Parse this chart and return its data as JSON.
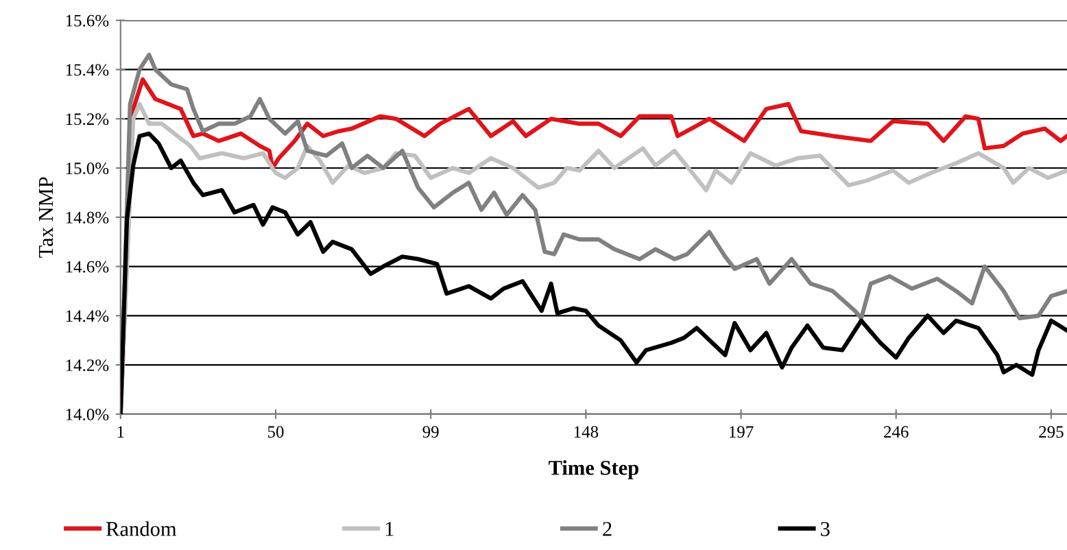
{
  "chart_data": {
    "type": "line",
    "xlabel": "Time Step",
    "ylabel": "Tax NMP",
    "xlim": [
      1,
      300
    ],
    "xticks": [
      1,
      50,
      99,
      148,
      197,
      246,
      295
    ],
    "ylim": [
      14.0,
      15.6
    ],
    "yticks": [
      {
        "value": 14.0,
        "label": "14.0%"
      },
      {
        "value": 14.2,
        "label": "14.2%"
      },
      {
        "value": 14.4,
        "label": "14.4%"
      },
      {
        "value": 14.6,
        "label": "14.6%"
      },
      {
        "value": 14.8,
        "label": "14.8%"
      },
      {
        "value": 15.0,
        "label": "15.0%"
      },
      {
        "value": 15.2,
        "label": "15.2%"
      },
      {
        "value": 15.4,
        "label": "15.4%"
      },
      {
        "value": 15.6,
        "label": "15.6%"
      }
    ],
    "grid": "y",
    "legend": "bottom",
    "marker": "none",
    "line_style": "solid",
    "series": [
      {
        "name": "Random",
        "color": "#e0141a",
        "x": [
          1,
          5,
          8,
          12,
          16,
          20,
          24,
          27,
          32,
          39,
          45,
          48,
          49,
          51,
          56,
          60,
          65,
          70,
          74,
          83,
          88,
          97,
          102,
          111,
          118,
          125,
          129,
          137,
          146,
          152,
          159,
          165,
          175,
          177,
          187,
          198,
          205,
          212,
          216,
          226,
          238,
          245,
          256,
          261,
          268,
          272,
          274,
          280,
          286,
          293,
          298,
          300
        ],
        "values": [
          14.0,
          15.24,
          15.36,
          15.28,
          15.26,
          15.24,
          15.13,
          15.14,
          15.11,
          15.14,
          15.09,
          15.07,
          15.0,
          15.04,
          15.11,
          15.18,
          15.13,
          15.15,
          15.16,
          15.21,
          15.2,
          15.13,
          15.18,
          15.24,
          15.13,
          15.19,
          15.13,
          15.2,
          15.18,
          15.18,
          15.13,
          15.21,
          15.21,
          15.13,
          15.2,
          15.11,
          15.24,
          15.26,
          15.15,
          15.13,
          15.11,
          15.19,
          15.18,
          15.11,
          15.21,
          15.2,
          15.08,
          15.09,
          15.14,
          15.16,
          15.11,
          15.13
        ]
      },
      {
        "name": "1",
        "color": "#c0c0c0",
        "x": [
          1,
          5,
          7,
          10,
          14,
          23,
          26,
          33,
          40,
          46,
          50,
          53,
          57,
          60,
          64,
          68,
          73,
          78,
          84,
          88,
          94,
          99,
          106,
          111,
          118,
          125,
          133,
          138,
          142,
          146,
          152,
          157,
          166,
          170,
          176,
          181,
          186,
          189,
          194,
          200,
          208,
          215,
          222,
          231,
          237,
          245,
          250,
          257,
          265,
          272,
          280,
          283,
          288,
          294,
          300
        ],
        "values": [
          14.0,
          15.2,
          15.26,
          15.18,
          15.18,
          15.09,
          15.04,
          15.06,
          15.04,
          15.06,
          14.98,
          14.96,
          15.0,
          15.09,
          15.03,
          14.94,
          15.01,
          14.98,
          15.0,
          15.06,
          15.05,
          14.96,
          15.0,
          14.98,
          15.04,
          15.0,
          14.92,
          14.94,
          15.0,
          14.99,
          15.07,
          15.0,
          15.08,
          15.01,
          15.07,
          14.99,
          14.91,
          14.99,
          14.94,
          15.06,
          15.01,
          15.04,
          15.05,
          14.93,
          14.95,
          14.99,
          14.94,
          14.98,
          15.02,
          15.06,
          15.0,
          14.94,
          15.0,
          14.96,
          14.99
        ]
      },
      {
        "name": "2",
        "color": "#808080",
        "x": [
          1,
          4,
          7,
          10,
          12,
          17,
          22,
          24,
          27,
          32,
          37,
          42,
          45,
          48,
          53,
          57,
          60,
          66,
          71,
          74,
          79,
          84,
          90,
          95,
          100,
          106,
          111,
          115,
          119,
          123,
          128,
          132,
          135,
          138,
          141,
          146,
          152,
          157,
          165,
          170,
          176,
          180,
          187,
          192,
          195,
          202,
          206,
          213,
          219,
          226,
          233,
          235,
          238,
          244,
          251,
          259,
          265,
          270,
          274,
          280,
          285,
          291,
          295,
          300
        ],
        "values": [
          14.0,
          15.26,
          15.4,
          15.46,
          15.4,
          15.34,
          15.32,
          15.24,
          15.15,
          15.18,
          15.18,
          15.21,
          15.28,
          15.2,
          15.14,
          15.19,
          15.07,
          15.05,
          15.1,
          15.0,
          15.05,
          15.0,
          15.07,
          14.92,
          14.84,
          14.9,
          14.94,
          14.83,
          14.9,
          14.81,
          14.89,
          14.83,
          14.66,
          14.65,
          14.73,
          14.71,
          14.71,
          14.67,
          14.63,
          14.67,
          14.63,
          14.65,
          14.74,
          14.64,
          14.59,
          14.63,
          14.53,
          14.63,
          14.53,
          14.5,
          14.42,
          14.39,
          14.53,
          14.56,
          14.51,
          14.55,
          14.5,
          14.45,
          14.6,
          14.5,
          14.39,
          14.4,
          14.48,
          14.5
        ]
      },
      {
        "name": "3",
        "color": "#000000",
        "x": [
          1,
          3,
          5,
          7,
          10,
          13,
          17,
          20,
          24,
          27,
          33,
          37,
          43,
          46,
          49,
          53,
          57,
          61,
          65,
          68,
          74,
          80,
          84,
          90,
          95,
          101,
          104,
          111,
          118,
          122,
          128,
          134,
          137,
          139,
          144,
          148,
          152,
          159,
          164,
          167,
          175,
          179,
          183,
          192,
          195,
          200,
          205,
          210,
          213,
          218,
          223,
          229,
          235,
          241,
          246,
          250,
          256,
          261,
          265,
          272,
          278,
          280,
          284,
          289,
          291,
          295,
          300
        ],
        "values": [
          14.0,
          14.79,
          15.01,
          15.13,
          15.14,
          15.1,
          15.0,
          15.03,
          14.94,
          14.89,
          14.91,
          14.82,
          14.85,
          14.77,
          14.84,
          14.82,
          14.73,
          14.78,
          14.66,
          14.7,
          14.67,
          14.57,
          14.6,
          14.64,
          14.63,
          14.61,
          14.49,
          14.52,
          14.47,
          14.51,
          14.54,
          14.42,
          14.53,
          14.41,
          14.43,
          14.42,
          14.36,
          14.3,
          14.21,
          14.26,
          14.29,
          14.31,
          14.35,
          14.24,
          14.37,
          14.26,
          14.33,
          14.19,
          14.27,
          14.36,
          14.27,
          14.26,
          14.38,
          14.29,
          14.23,
          14.31,
          14.4,
          14.33,
          14.38,
          14.35,
          14.24,
          14.17,
          14.2,
          14.16,
          14.26,
          14.38,
          14.34
        ]
      }
    ]
  }
}
